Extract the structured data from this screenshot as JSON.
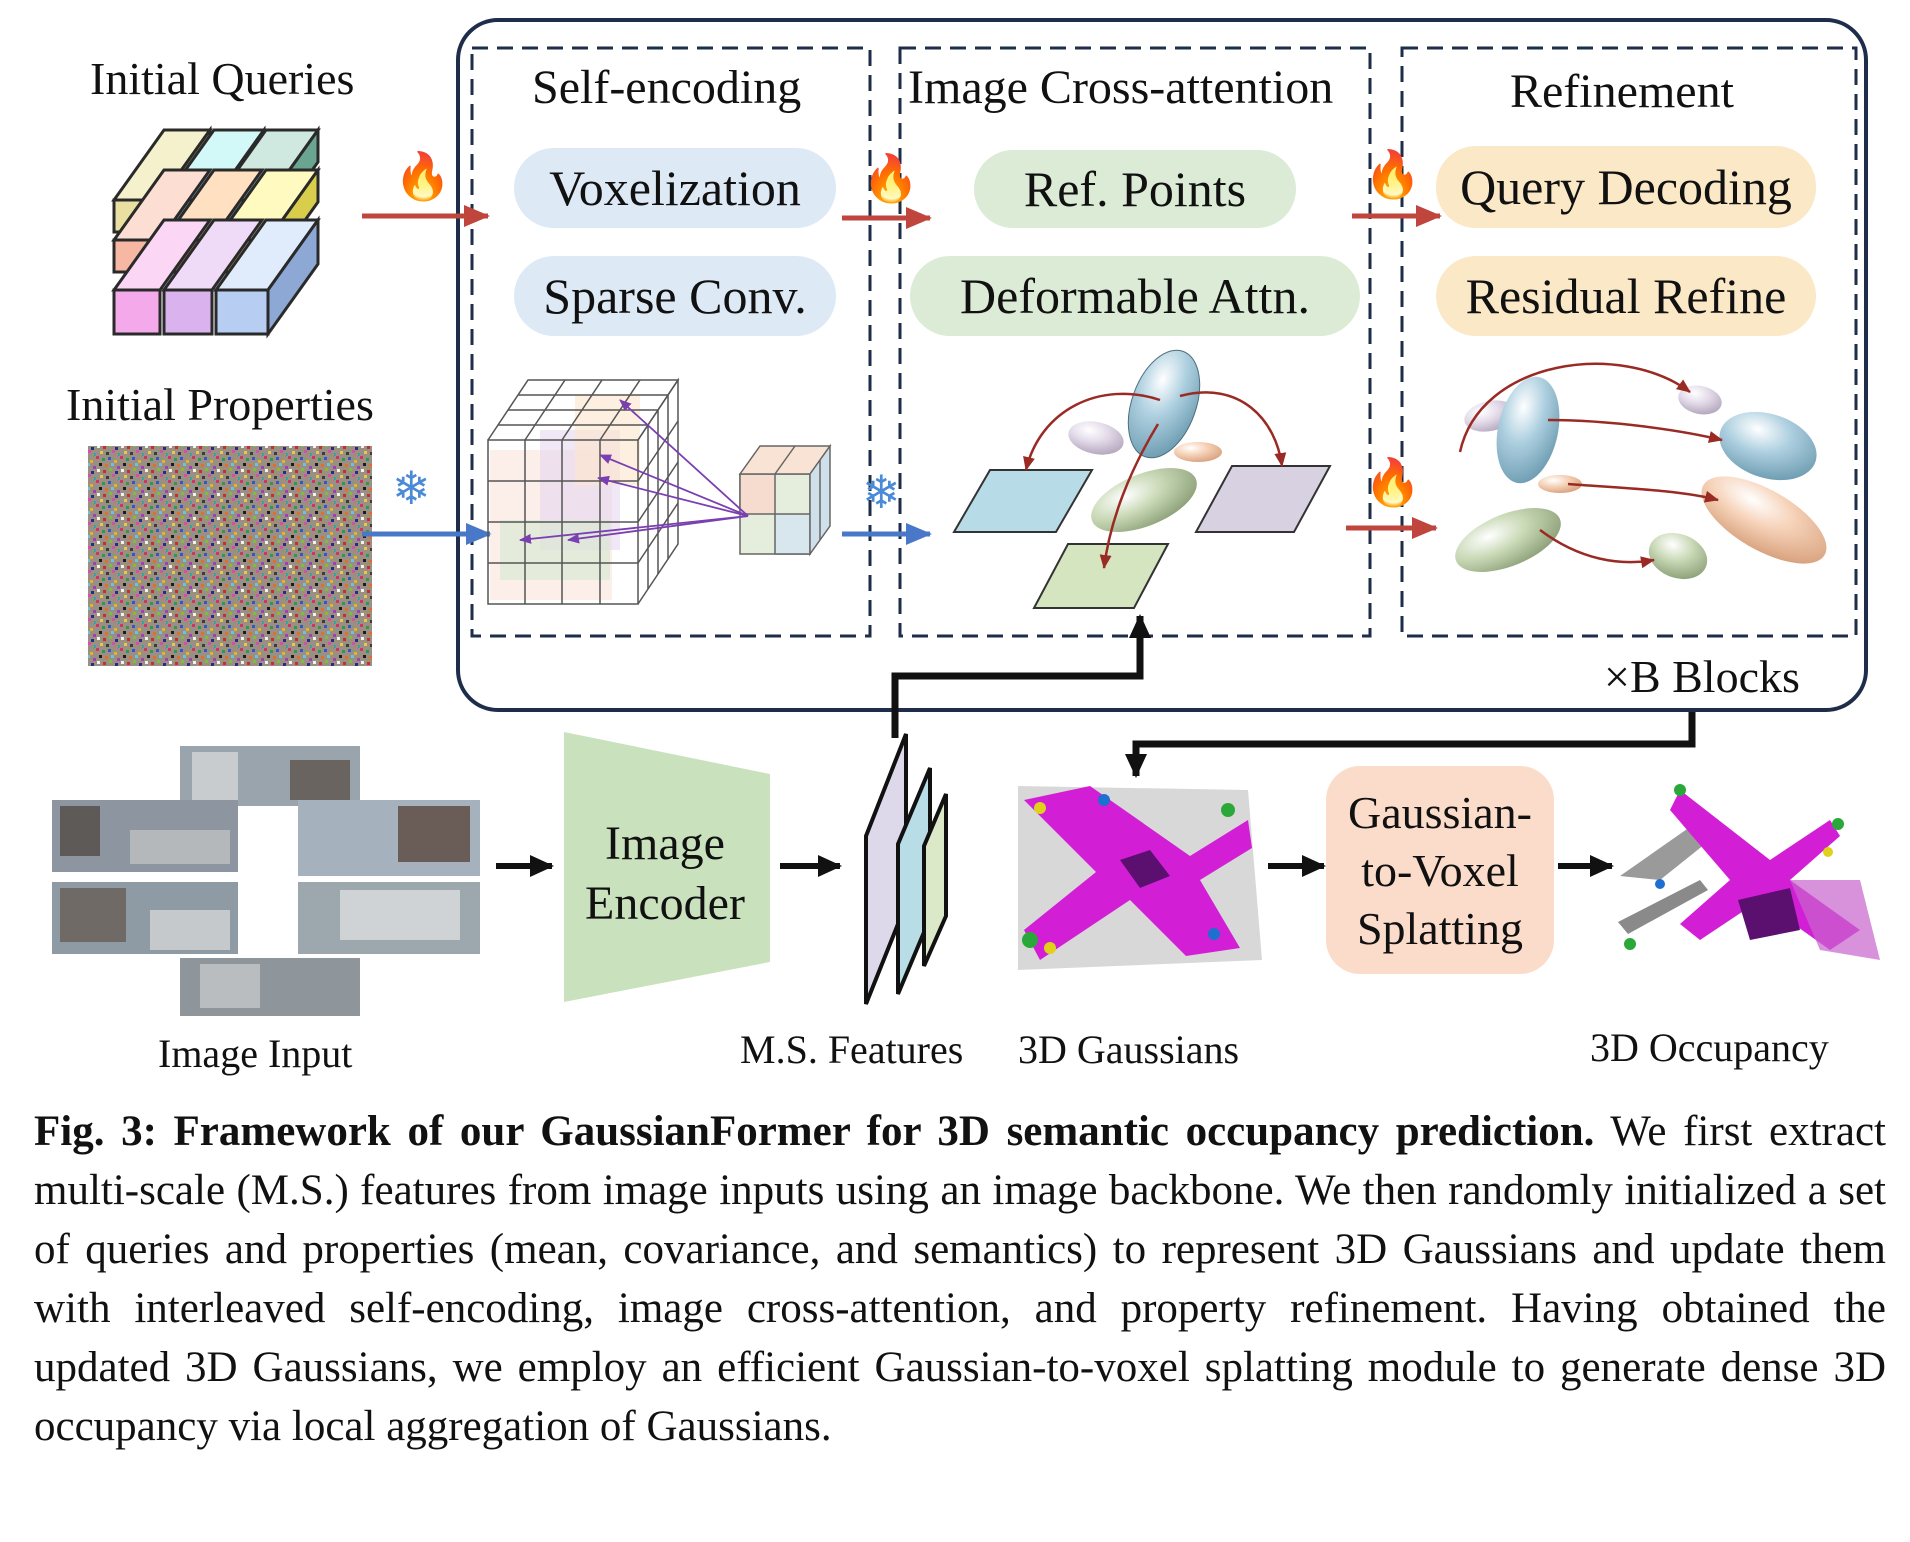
{
  "inputs": {
    "initial_queries_label": "Initial Queries",
    "initial_properties_label": "Initial Properties",
    "image_input_label": "Image Input"
  },
  "stages": {
    "self_encoding": {
      "title": "Self-encoding",
      "ops": [
        "Voxelization",
        "Sparse Conv."
      ]
    },
    "image_cross_attention": {
      "title": "Image Cross-attention",
      "ops": [
        "Ref. Points",
        "Deformable Attn."
      ]
    },
    "refinement": {
      "title": "Refinement",
      "ops": [
        "Query Decoding",
        "Residual Refine"
      ]
    },
    "blocks_label": "×B Blocks"
  },
  "pipeline": {
    "encoder_label_line1": "Image",
    "encoder_label_line2": "Encoder",
    "ms_features_label": "M.S. Features",
    "gaussians_label": "3D Gaussians",
    "splatting_line1": "Gaussian-",
    "splatting_line2": "to-Voxel",
    "splatting_line3": "Splatting",
    "occupancy_label": "3D Occupancy"
  },
  "icons": {
    "trainable": "fire-icon",
    "frozen": "snowflake-icon"
  },
  "colors": {
    "trainable_arrow": "#c0453c",
    "frozen_arrow": "#4a78c8",
    "pill_blue": "#dde9f5",
    "pill_green": "#dcebd6",
    "pill_orange": "#fbe8c6",
    "encoder_green": "#c9e2bd",
    "splat_box": "#fbdccb",
    "semantic_magenta": "#d21fd6"
  },
  "caption": {
    "figure_label": "Fig. 3:",
    "bold_title": "Framework of our GaussianFormer for 3D semantic occupancy prediction.",
    "body": "We first extract multi-scale (M.S.) features from image inputs using an image backbone. We then randomly initialized a set of queries and properties (mean, covariance, and semantics) to represent 3D Gaussians and update them with interleaved self-encoding, image cross-attention, and property refinement. Having obtained the updated 3D Gaussians, we employ an efficient Gaussian-to-voxel splatting module to generate dense 3D occupancy via local aggregation of Gaussians."
  }
}
